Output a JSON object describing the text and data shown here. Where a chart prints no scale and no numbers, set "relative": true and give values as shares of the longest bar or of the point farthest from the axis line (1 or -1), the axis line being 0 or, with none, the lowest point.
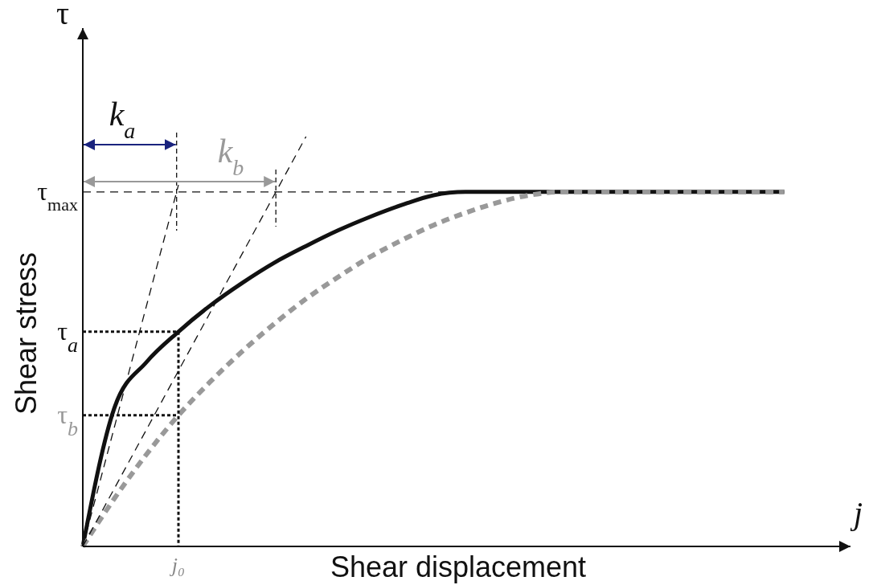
{
  "chart_data": {
    "type": "line",
    "relative": true,
    "xlabel": "Shear displacement",
    "ylabel": "Shear stress",
    "legend": false,
    "categories": [
      null,
      null,
      null,
      null,
      null,
      null,
      null,
      null,
      null,
      null,
      null,
      null,
      null,
      null,
      null,
      null,
      null,
      null,
      null,
      null,
      null,
      null,
      null
    ],
    "series": [
      {
        "color": "#111111",
        "line_style": "solid",
        "values": [
          0,
          0.34,
          0.45,
          0.524,
          0.588,
          0.643,
          0.692,
          0.733,
          0.771,
          0.804,
          0.833,
          0.857,
          0.865,
          0.865,
          0.865,
          0.865,
          0.865,
          0.865,
          0.865,
          0.865,
          0.865,
          0.865,
          0.865
        ]
      },
      {
        "color": "#999999",
        "line_style": "dashed",
        "values": [
          0,
          0.118,
          0.225,
          0.32,
          0.402,
          0.476,
          0.543,
          0.604,
          0.657,
          0.706,
          0.747,
          0.784,
          0.814,
          0.839,
          0.857,
          0.865,
          0.865,
          0.865,
          0.865,
          0.865,
          0.865,
          0.865,
          0.865
        ]
      },
      {
        "color": "#111111",
        "line_style": "dashed",
        "values": [
          0,
          null,
          null,
          0.882,
          null,
          null,
          null,
          null,
          null,
          null,
          null,
          null,
          null,
          null,
          null,
          null,
          null,
          null,
          null,
          null,
          null,
          null,
          null
        ]
      },
      {
        "color": "#111111",
        "line_style": "dashed",
        "values": [
          0,
          null,
          null,
          null,
          null,
          null,
          null,
          1,
          null,
          null,
          null,
          null,
          null,
          null,
          null,
          null,
          null,
          null,
          null,
          null,
          null,
          null,
          null
        ]
      }
    ],
    "ref_lines": [
      {
        "axis": "y",
        "value": 0.865,
        "label": "τ$_{max}$",
        "color": "#111111",
        "line_style": "dashed"
      },
      {
        "axis": "y",
        "value": 0.524,
        "label": "τ$_{a}$",
        "color": "#111111",
        "line_style": "dotted"
      },
      {
        "axis": "y",
        "value": 0.32,
        "label": "τ$_{b}$",
        "color": "#111111",
        "line_style": "dotted"
      }
    ],
    "annotations": [
      "k$_{a}$",
      "k$_{b}$",
      "τ",
      "j",
      "j₀"
    ]
  }
}
